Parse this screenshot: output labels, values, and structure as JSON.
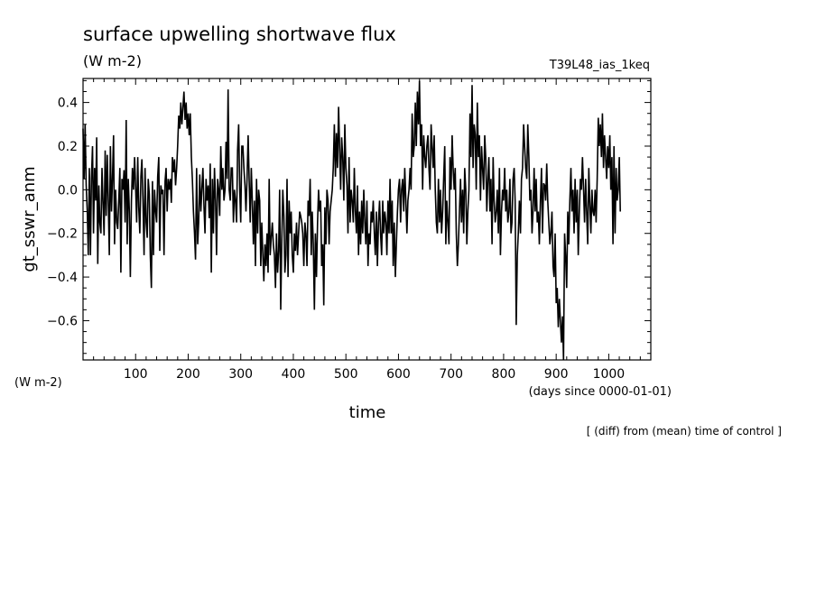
{
  "chart_data": {
    "type": "line",
    "title": "surface upwelling shortwave flux",
    "subtitle": "(W m-2)",
    "run_label": "T39L48_ias_1keq",
    "ylabel": "gt_sswr_anm",
    "y_unit_label": "(W m-2)",
    "xlabel": "time",
    "x_unit_label": "(days since 0000-01-01)",
    "footnote": "[ (diff) from (mean) time of control ]",
    "xlim": [
      0,
      1080
    ],
    "ylim": [
      -0.78,
      0.51
    ],
    "x_ticks": [
      100,
      200,
      300,
      400,
      500,
      600,
      700,
      800,
      900,
      1000
    ],
    "y_ticks": [
      -0.6,
      -0.4,
      -0.2,
      0.0,
      0.2,
      0.4
    ],
    "y_tick_labels": [
      "−0.6",
      "−0.4",
      "−0.2",
      "0.0",
      "0.2",
      "0.4"
    ],
    "grid": false,
    "series": [
      {
        "x_step": 2,
        "values": [
          0.28,
          0.05,
          0.3,
          0.02,
          -0.1,
          -0.3,
          0.1,
          -0.3,
          0.05,
          0.2,
          -0.2,
          0.1,
          -0.05,
          0.24,
          -0.34,
          0.02,
          -0.15,
          -0.2,
          0.1,
          -0.05,
          -0.21,
          0.18,
          -0.12,
          0.16,
          -0.06,
          -0.3,
          0.2,
          -0.1,
          0.05,
          0.25,
          -0.25,
          0.0,
          -0.15,
          -0.18,
          -0.05,
          0.1,
          -0.38,
          0.05,
          0.0,
          0.09,
          -0.15,
          0.32,
          -0.25,
          0.05,
          -0.1,
          -0.4,
          -0.05,
          0.1,
          0.0,
          0.15,
          0.02,
          -0.15,
          0.15,
          -0.08,
          -0.2,
          0.06,
          0.14,
          -0.05,
          -0.3,
          0.1,
          -0.15,
          -0.22,
          0.05,
          -0.02,
          -0.3,
          -0.45,
          0.04,
          -0.3,
          0.0,
          -0.1,
          -0.15,
          0.06,
          0.15,
          -0.28,
          0.02,
          -0.02,
          0.0,
          -0.3,
          0.04,
          0.1,
          -0.1,
          0.05,
          0.0,
          0.05,
          -0.06,
          0.15,
          0.08,
          0.14,
          0.02,
          0.1,
          0.2,
          0.34,
          0.28,
          0.4,
          0.3,
          0.38,
          0.45,
          0.32,
          0.4,
          0.28,
          0.35,
          0.25,
          0.35,
          0.15,
          0.05,
          -0.1,
          -0.2,
          -0.32,
          0.1,
          -0.25,
          -0.15,
          0.07,
          -0.1,
          0.0,
          0.1,
          -0.08,
          -0.2,
          0.05,
          -0.05,
          0.02,
          -0.13,
          0.12,
          -0.38,
          0.05,
          -0.2,
          0.1,
          -0.05,
          -0.3,
          0.05,
          0.0,
          -0.12,
          0.2,
          0.0,
          0.1,
          -0.05,
          0.0,
          0.22,
          0.05,
          0.46,
          0.0,
          -0.05,
          0.1,
          0.1,
          -0.15,
          0.0,
          -0.05,
          -0.15,
          0.18,
          0.3,
          0.0,
          -0.15,
          0.2,
          0.2,
          0.1,
          0.02,
          -0.1,
          0.05,
          0.25,
          0.05,
          -0.15,
          0.1,
          -0.05,
          -0.25,
          -0.05,
          -0.35,
          0.05,
          -0.2,
          0.0,
          -0.05,
          -0.35,
          -0.15,
          -0.3,
          -0.42,
          -0.25,
          -0.35,
          -0.2,
          -0.38,
          0.05,
          -0.3,
          -0.22,
          -0.15,
          -0.25,
          -0.3,
          -0.45,
          -0.2,
          -0.38,
          -0.28,
          0.0,
          -0.55,
          -0.25,
          0.0,
          -0.12,
          -0.38,
          -0.3,
          0.05,
          -0.4,
          -0.05,
          -0.2,
          -0.1,
          -0.3,
          -0.38,
          -0.2,
          -0.28,
          -0.15,
          -0.3,
          -0.2,
          -0.1,
          -0.12,
          -0.15,
          -0.2,
          -0.35,
          -0.15,
          -0.2,
          -0.35,
          -0.05,
          -0.12,
          0.05,
          -0.3,
          -0.1,
          -0.25,
          -0.55,
          -0.2,
          -0.4,
          -0.15,
          0.0,
          -0.1,
          -0.05,
          -0.35,
          -0.25,
          -0.53,
          -0.08,
          -0.25,
          0.0,
          -0.05,
          -0.25,
          -0.1,
          -0.05,
          0.0,
          0.1,
          0.3,
          0.06,
          0.26,
          0.1,
          0.38,
          0.2,
          0.0,
          0.24,
          0.15,
          -0.05,
          0.3,
          0.1,
          0.02,
          -0.2,
          0.15,
          -0.15,
          0.0,
          -0.05,
          -0.15,
          0.1,
          -0.1,
          -0.2,
          0.02,
          -0.3,
          -0.1,
          -0.25,
          -0.05,
          -0.2,
          0.0,
          -0.15,
          -0.25,
          -0.05,
          -0.35,
          -0.2,
          -0.25,
          -0.1,
          -0.15,
          -0.05,
          -0.2,
          -0.3,
          -0.1,
          -0.35,
          -0.15,
          -0.05,
          -0.2,
          -0.3,
          -0.05,
          -0.2,
          -0.1,
          -0.15,
          -0.3,
          -0.05,
          -0.2,
          0.05,
          -0.2,
          -0.05,
          -0.35,
          -0.15,
          -0.4,
          -0.25,
          -0.1,
          0.0,
          0.05,
          -0.15,
          0.0,
          0.05,
          -0.1,
          0.1,
          -0.05,
          -0.2,
          -0.05,
          0.0,
          0.1,
          0.0,
          0.35,
          0.15,
          0.2,
          0.4,
          0.2,
          0.45,
          0.3,
          0.5,
          0.2,
          0.3,
          0.0,
          0.25,
          0.15,
          0.1,
          0.2,
          0.25,
          0.1,
          0.0,
          0.3,
          0.2,
          0.1,
          0.25,
          0.0,
          -0.15,
          -0.2,
          0.05,
          -0.15,
          0.0,
          -0.2,
          -0.1,
          0.05,
          0.2,
          -0.25,
          -0.05,
          -0.15,
          -0.25,
          0.15,
          0.0,
          0.25,
          0.1,
          0.0,
          0.1,
          -0.2,
          -0.35,
          -0.25,
          -0.1,
          0.05,
          -0.15,
          0.0,
          -0.2,
          0.1,
          0.0,
          -0.25,
          -0.1,
          0.0,
          0.35,
          0.15,
          0.48,
          0.1,
          0.3,
          0.25,
          0.0,
          0.4,
          0.15,
          0.25,
          -0.05,
          0.2,
          0.1,
          0.0,
          0.25,
          0.15,
          -0.1,
          0.05,
          0.15,
          -0.1,
          0.05,
          -0.25,
          0.15,
          -0.05,
          -0.15,
          -0.1,
          0.0,
          -0.2,
          0.1,
          -0.3,
          -0.1,
          0.0,
          -0.05,
          0.1,
          -0.1,
          0.0,
          -0.15,
          -0.1,
          0.05,
          -0.2,
          -0.15,
          0.05,
          0.1,
          -0.05,
          -0.62,
          -0.3,
          -0.2,
          -0.05,
          -0.2,
          0.05,
          0.1,
          0.3,
          0.2,
          0.1,
          0.05,
          0.3,
          0.15,
          -0.05,
          0.0,
          -0.2,
          -0.1,
          0.1,
          -0.1,
          0.05,
          -0.15,
          -0.1,
          -0.25,
          -0.05,
          0.1,
          -0.2,
          0.03,
          0.02,
          -0.05,
          0.12,
          -0.05,
          -0.15,
          -0.25,
          -0.2,
          -0.1,
          -0.35,
          -0.4,
          -0.2,
          -0.52,
          -0.45,
          -0.63,
          -0.5,
          -0.6,
          -0.7,
          -0.58,
          -0.78,
          -0.2,
          -0.3,
          -0.45,
          -0.1,
          -0.25,
          -0.05,
          0.1,
          -0.1,
          0.0,
          -0.2,
          0.05,
          -0.15,
          0.0,
          -0.3,
          -0.1,
          0.05,
          0.0,
          0.15,
          0.0,
          -0.15,
          0.05,
          -0.1,
          -0.25,
          0.1,
          -0.05,
          -0.2,
          0.0,
          -0.1,
          -0.12,
          0.0,
          -0.15,
          0.05,
          0.33,
          0.2,
          0.3,
          0.15,
          0.35,
          0.1,
          0.25,
          0.15,
          0.05,
          0.2,
          0.1,
          0.25,
          0.0,
          0.15,
          -0.25,
          0.2,
          -0.2,
          0.1,
          -0.05,
          0.0,
          0.15,
          -0.1
        ]
      }
    ]
  }
}
